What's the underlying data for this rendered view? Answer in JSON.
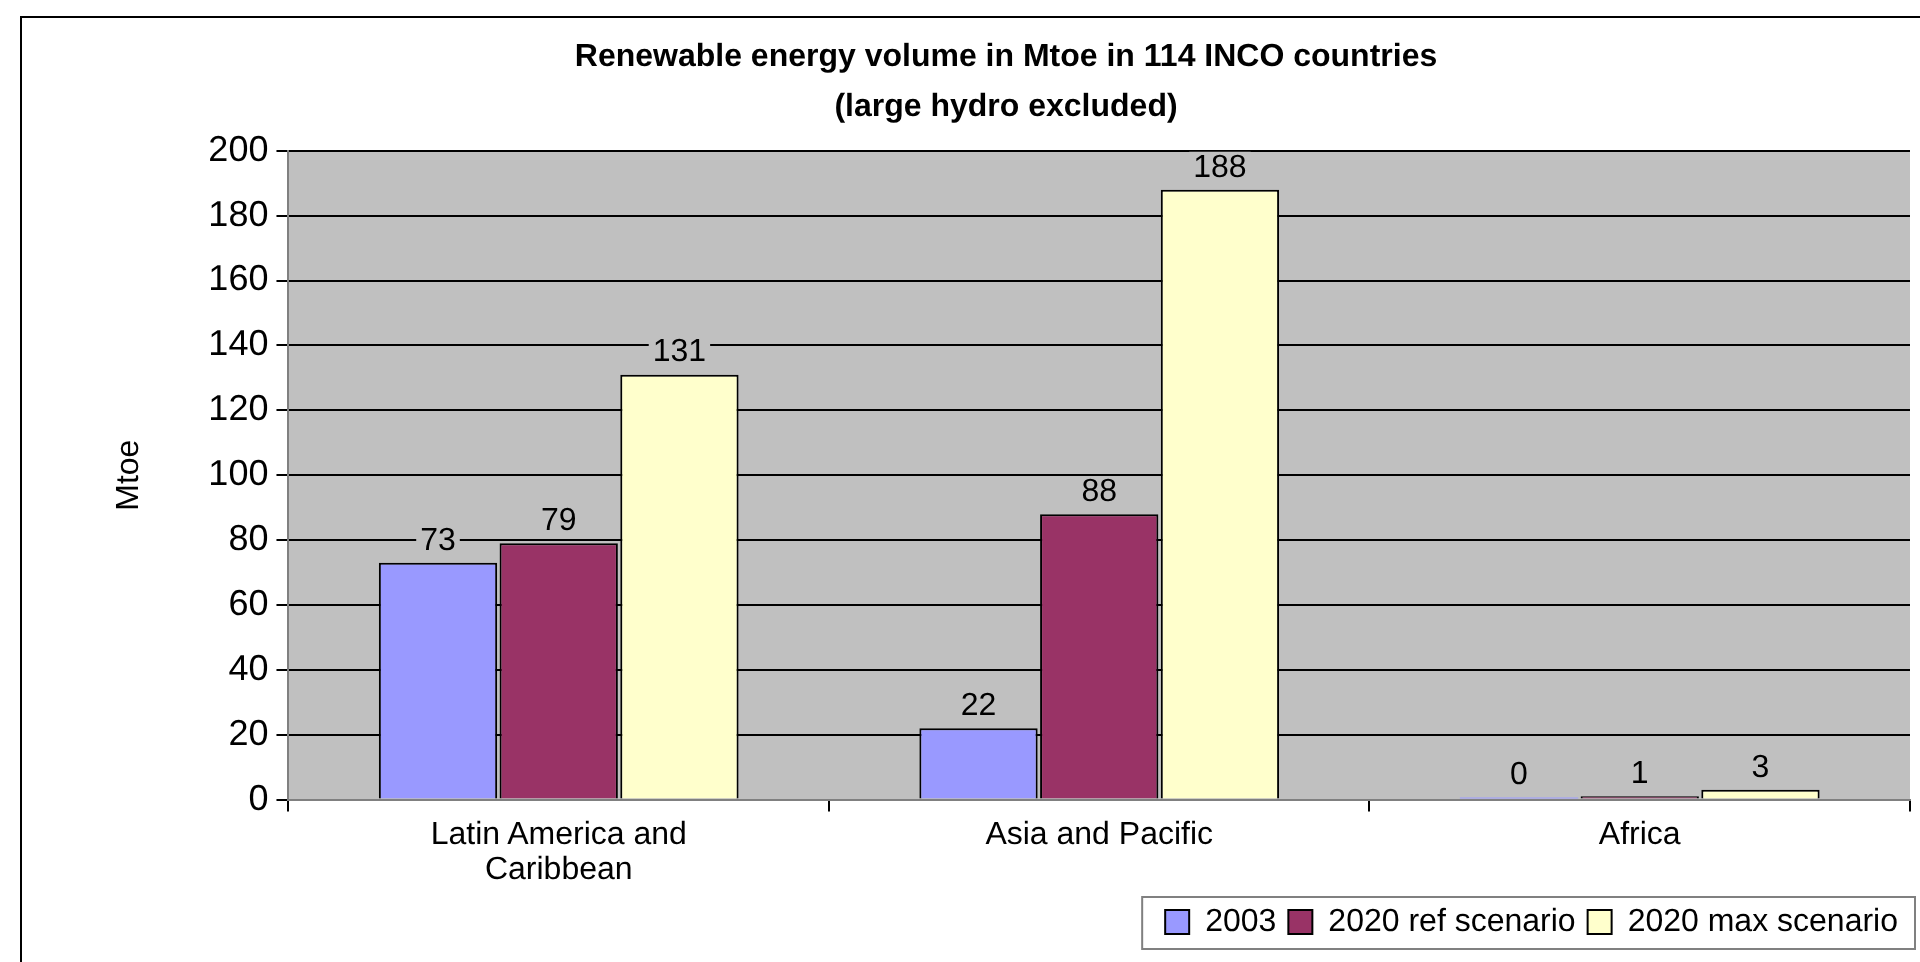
{
  "chart_data": {
    "type": "bar",
    "title": "Renewable energy volume in Mtoe in 114 INCO countries",
    "subtitle": "(large hydro excluded)",
    "ylabel": "Mtoe",
    "categories": [
      "Latin America and Caribbean",
      "Asia and Pacific",
      "Africa"
    ],
    "series": [
      {
        "name": "2003",
        "color": "#9999ff",
        "values": [
          73,
          22,
          0
        ]
      },
      {
        "name": "2020 ref scenario",
        "color": "#993366",
        "values": [
          79,
          88,
          1
        ]
      },
      {
        "name": "2020 max scenario",
        "color": "#ffffcc",
        "values": [
          131,
          188,
          3
        ]
      }
    ],
    "ylim": [
      0,
      200
    ],
    "yticks": [
      0,
      20,
      40,
      60,
      80,
      100,
      120,
      140,
      160,
      180,
      200
    ],
    "grid": "y",
    "legend": "bottom right",
    "data_labels": true
  }
}
